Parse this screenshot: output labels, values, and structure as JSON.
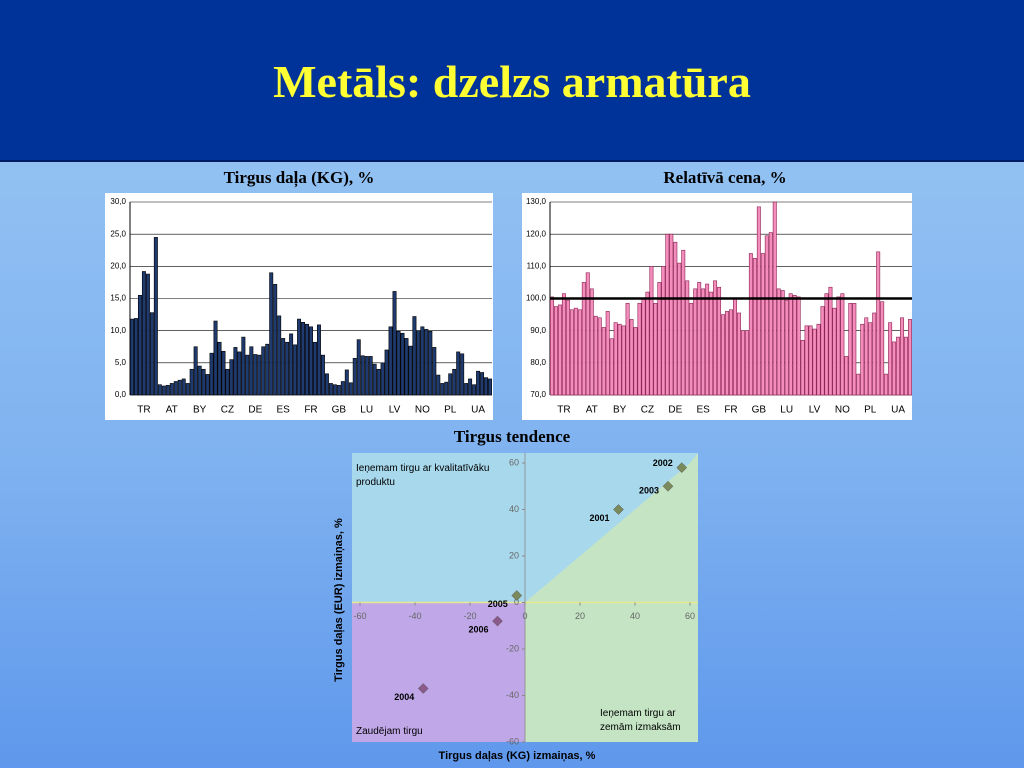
{
  "title": "Metāls: dzelzs armatūra",
  "chart_data": [
    {
      "type": "bar",
      "title": "Tirgus daļa (KG), %",
      "color": "#1f3a6e",
      "grid": true,
      "categories": [
        null,
        null,
        null,
        "TR",
        null,
        null,
        null,
        null,
        null,
        null,
        "AT",
        null,
        null,
        null,
        null,
        null,
        null,
        "BY",
        null,
        null,
        null,
        null,
        null,
        null,
        "CZ",
        null,
        null,
        null,
        null,
        null,
        null,
        "DE",
        null,
        null,
        null,
        null,
        null,
        null,
        "ES",
        null,
        null,
        null,
        null,
        null,
        null,
        "FR",
        null,
        null,
        null,
        null,
        null,
        null,
        "GB",
        null,
        null,
        null,
        null,
        null,
        null,
        "LU",
        null,
        null,
        null,
        null,
        null,
        null,
        "LV",
        null,
        null,
        null,
        null,
        null,
        null,
        "NO",
        null,
        null,
        null,
        null,
        null,
        null,
        "PL",
        null,
        null,
        null,
        null,
        null,
        null,
        "UA",
        null,
        null,
        null
      ],
      "values": [
        11.8,
        11.9,
        15.5,
        19.2,
        18.8,
        12.8,
        24.5,
        1.6,
        1.4,
        1.5,
        1.8,
        2.1,
        2.3,
        2.5,
        1.8,
        4.0,
        7.5,
        4.5,
        4.0,
        3.2,
        6.5,
        11.5,
        8.2,
        6.8,
        4.0,
        5.5,
        7.4,
        6.7,
        9.0,
        6.2,
        7.5,
        6.3,
        6.2,
        7.5,
        7.9,
        19.0,
        17.2,
        12.3,
        8.8,
        8.2,
        9.5,
        7.8,
        11.8,
        11.3,
        11.0,
        10.6,
        8.2,
        10.9,
        6.2,
        3.3,
        1.8,
        1.6,
        1.5,
        2.1,
        3.9,
        1.9,
        5.7,
        8.6,
        6.1,
        6.0,
        6.0,
        4.8,
        4.0,
        5.0,
        7.0,
        10.6,
        16.1,
        9.9,
        9.6,
        8.8,
        7.6,
        12.2,
        10.0,
        10.6,
        10.2,
        9.9,
        7.4,
        3.1,
        1.8,
        2.0,
        3.3,
        4.0,
        6.7,
        6.4,
        1.8,
        2.5,
        1.6,
        3.7,
        3.5,
        2.7,
        2.5
      ],
      "ylim": [
        0,
        30
      ],
      "yticks": [
        {
          "value": 0,
          "label": "0,0"
        },
        {
          "value": 5,
          "label": "5,0"
        },
        {
          "value": 10,
          "label": "10,0"
        },
        {
          "value": 15,
          "label": "15,0"
        },
        {
          "value": 20,
          "label": "20,0"
        },
        {
          "value": 25,
          "label": "25,0"
        },
        {
          "value": 30,
          "label": "30,0"
        }
      ]
    },
    {
      "type": "bar",
      "title": "Relatīvā cena, %",
      "color": "#f48cbc",
      "grid": true,
      "reference_line": 100,
      "categories": [
        null,
        null,
        null,
        "TR",
        null,
        null,
        null,
        null,
        null,
        null,
        "AT",
        null,
        null,
        null,
        null,
        null,
        null,
        "BY",
        null,
        null,
        null,
        null,
        null,
        null,
        "CZ",
        null,
        null,
        null,
        null,
        null,
        null,
        "DE",
        null,
        null,
        null,
        null,
        null,
        null,
        "ES",
        null,
        null,
        null,
        null,
        null,
        null,
        "FR",
        null,
        null,
        null,
        null,
        null,
        null,
        "GB",
        null,
        null,
        null,
        null,
        null,
        null,
        "LU",
        null,
        null,
        null,
        null,
        null,
        null,
        "LV",
        null,
        null,
        null,
        null,
        null,
        null,
        "NO",
        null,
        null,
        null,
        null,
        null,
        null,
        "PL",
        null,
        null,
        null,
        null,
        null,
        null,
        "UA",
        null,
        null,
        null
      ],
      "values": [
        100.5,
        97.5,
        98,
        101.5,
        99.5,
        96.5,
        97,
        96.5,
        105,
        108,
        103,
        94.5,
        94,
        91,
        96,
        87.5,
        92.5,
        92,
        91.5,
        98.5,
        93.5,
        91,
        98.5,
        100,
        102,
        110,
        98.5,
        105,
        110,
        120,
        120,
        117.5,
        111,
        115,
        105.5,
        98.5,
        103,
        105,
        103,
        104.5,
        102,
        105.5,
        103.5,
        95,
        96,
        96.5,
        100,
        95.5,
        90,
        90,
        114,
        112.5,
        128.5,
        114,
        119.5,
        120.5,
        130,
        103,
        102.5,
        99.5,
        101.5,
        101,
        100.5,
        87,
        91.5,
        91.5,
        90.5,
        92,
        97.5,
        101.5,
        103.5,
        97,
        100.5,
        101.5,
        82,
        98.5,
        98.5,
        76.5,
        92,
        94,
        92.5,
        95.5,
        114.5,
        99,
        76.5,
        92.5,
        86.5,
        88,
        94,
        88,
        93.5
      ],
      "ylim": [
        70,
        130
      ],
      "yticks": [
        {
          "value": 70,
          "label": "70,0"
        },
        {
          "value": 80,
          "label": "80,0"
        },
        {
          "value": 90,
          "label": "90,0"
        },
        {
          "value": 100,
          "label": "100,0"
        },
        {
          "value": 110,
          "label": "110,0"
        },
        {
          "value": 120,
          "label": "120,0"
        },
        {
          "value": 130,
          "label": "130,0"
        }
      ]
    },
    {
      "type": "scatter",
      "title": "Tirgus tendence",
      "x_label": "Tirgus daļas (KG) izmaiņas, %",
      "y_label": "Tirgus daļas (EUR) izmaiņas, %",
      "x": [
        34,
        57,
        52,
        -37,
        -3,
        -10
      ],
      "values": [
        40,
        58,
        50,
        -37,
        3,
        -8
      ],
      "labels": [
        "2001",
        "2002",
        "2003",
        "2004",
        "2005",
        "2006"
      ],
      "colors": [
        "#7b8a5a",
        "#7b8a5a",
        "#7b8a5a",
        "#8a5a8a",
        "#7b8a5a",
        "#8a5a8a"
      ],
      "xlim": [
        -60,
        60
      ],
      "ylim": [
        -60,
        60
      ],
      "xticks": [
        -60,
        -40,
        -20,
        0,
        20,
        40,
        60
      ],
      "yticks": [
        -60,
        -40,
        -20,
        0,
        20,
        40,
        60
      ],
      "annotations": [
        "Ieņemam tirgu ar kvalitatīvāku produktu",
        "Ieņemam tirgu ar zemām izmaksām",
        "Zaudējam tirgu"
      ]
    }
  ]
}
